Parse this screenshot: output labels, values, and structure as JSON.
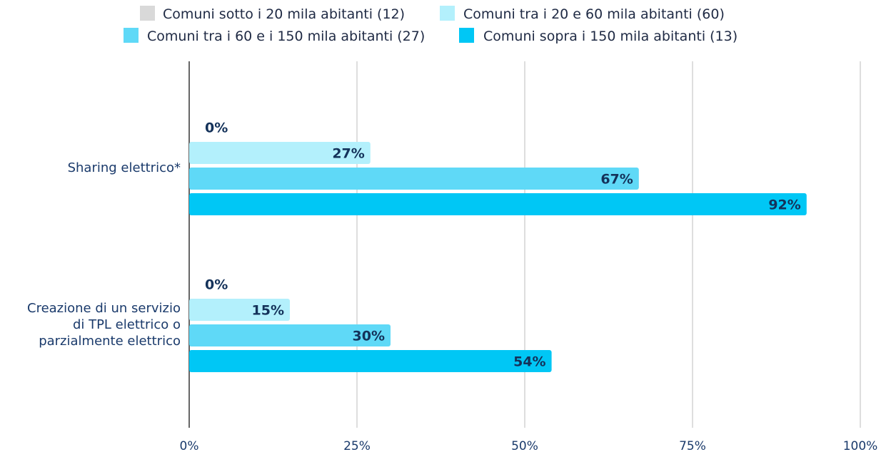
{
  "chart_data": {
    "type": "bar",
    "orientation": "horizontal",
    "categories": [
      [
        "Sharing elettrico*"
      ],
      [
        "Creazione di un servizio",
        "di TPL elettrico o",
        "parzialmente elettrico"
      ]
    ],
    "series": [
      {
        "name": "Comuni sotto i 20 mila abitanti (12)",
        "color": "#d9d9d9",
        "values": [
          0,
          0
        ],
        "labels": [
          "0%",
          "0%"
        ]
      },
      {
        "name": "Comuni tra i 20 e 60 mila abitanti (60)",
        "color": "#b3f0fc",
        "values": [
          27,
          15
        ],
        "labels": [
          "27%",
          "15%"
        ]
      },
      {
        "name": "Comuni tra i 60 e i 150 mila abitanti (27)",
        "color": "#5fd9f7",
        "values": [
          67,
          30
        ],
        "labels": [
          "67%",
          "30%"
        ]
      },
      {
        "name": "Comuni sopra i 150 mila abitanti (13)",
        "color": "#00c7f5",
        "values": [
          92,
          54
        ],
        "labels": [
          "92%",
          "54%"
        ]
      }
    ],
    "xlim": [
      0,
      100
    ],
    "x_ticks": [
      "0%",
      "25%",
      "50%",
      "75%",
      "100%"
    ],
    "x_tick_values": [
      0,
      25,
      50,
      75,
      100
    ],
    "grid": true,
    "legend_position": "top",
    "colors": {
      "gridline": "#d4d4d4",
      "axis": "#333333",
      "label_text": "#14325a"
    }
  }
}
